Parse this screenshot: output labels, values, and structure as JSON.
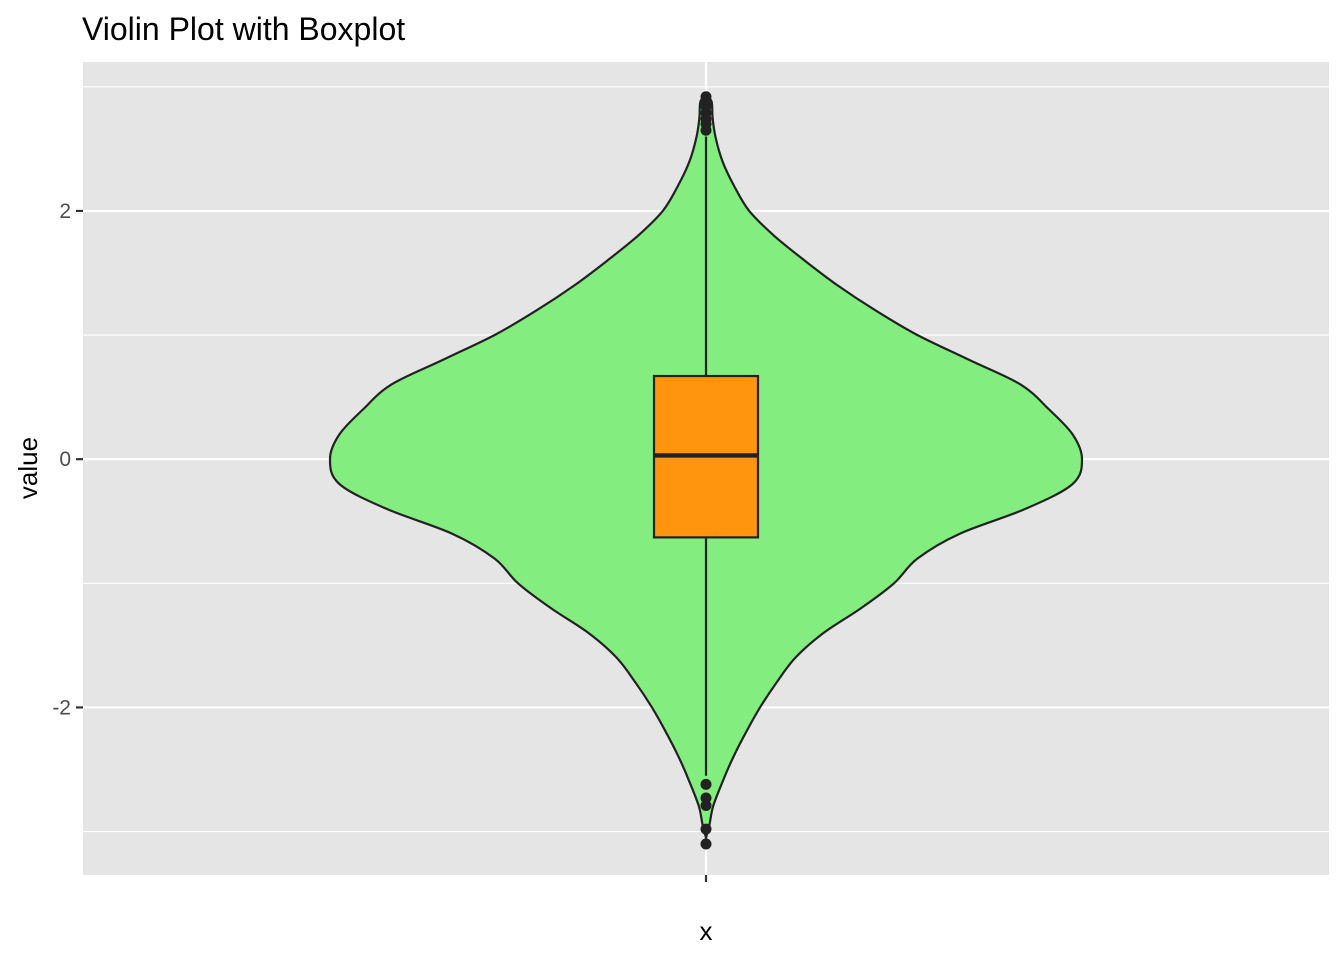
{
  "chart_data": {
    "type": "violin",
    "title": "Violin Plot with Boxplot",
    "xlabel": "x",
    "ylabel": "value",
    "categories": [
      ""
    ],
    "ylim": [
      -3.35,
      3.2
    ],
    "y_ticks": [
      -2,
      0,
      2
    ],
    "y_tick_labels": [
      "-2",
      "0",
      "2"
    ],
    "grid": true,
    "colors": {
      "panel": "#e5e5e5",
      "grid": "#ffffff",
      "violin_fill": "#83ee7f",
      "box_fill": "#ff950e",
      "outline": "#222222",
      "tick_label": "#4d4d4d"
    },
    "violin": {
      "density_profile": [
        {
          "y": 2.93,
          "half_width": 0.0
        },
        {
          "y": 2.88,
          "half_width": 0.012
        },
        {
          "y": 2.75,
          "half_width": 0.014
        },
        {
          "y": 2.6,
          "half_width": 0.02
        },
        {
          "y": 2.4,
          "half_width": 0.035
        },
        {
          "y": 2.2,
          "half_width": 0.06
        },
        {
          "y": 2.0,
          "half_width": 0.092
        },
        {
          "y": 1.8,
          "half_width": 0.145
        },
        {
          "y": 1.6,
          "half_width": 0.21
        },
        {
          "y": 1.4,
          "half_width": 0.28
        },
        {
          "y": 1.2,
          "half_width": 0.36
        },
        {
          "y": 1.0,
          "half_width": 0.45
        },
        {
          "y": 0.8,
          "half_width": 0.56
        },
        {
          "y": 0.6,
          "half_width": 0.67
        },
        {
          "y": 0.4,
          "half_width": 0.73
        },
        {
          "y": 0.2,
          "half_width": 0.78
        },
        {
          "y": 0.0,
          "half_width": 0.8
        },
        {
          "y": -0.2,
          "half_width": 0.78
        },
        {
          "y": -0.4,
          "half_width": 0.68
        },
        {
          "y": -0.6,
          "half_width": 0.54
        },
        {
          "y": -0.8,
          "half_width": 0.45
        },
        {
          "y": -1.0,
          "half_width": 0.4
        },
        {
          "y": -1.2,
          "half_width": 0.33
        },
        {
          "y": -1.4,
          "half_width": 0.25
        },
        {
          "y": -1.6,
          "half_width": 0.19
        },
        {
          "y": -1.8,
          "half_width": 0.15
        },
        {
          "y": -2.0,
          "half_width": 0.115
        },
        {
          "y": -2.2,
          "half_width": 0.085
        },
        {
          "y": -2.4,
          "half_width": 0.058
        },
        {
          "y": -2.6,
          "half_width": 0.035
        },
        {
          "y": -2.8,
          "half_width": 0.015
        },
        {
          "y": -2.95,
          "half_width": 0.007
        },
        {
          "y": -3.05,
          "half_width": 0.0
        }
      ]
    },
    "boxplot": {
      "q1": -0.63,
      "median": 0.03,
      "q3": 0.67,
      "whisker_low": -2.55,
      "whisker_high": 2.6,
      "outliers": [
        2.92,
        2.88,
        2.84,
        2.79,
        2.74,
        2.7,
        2.65,
        -2.62,
        -2.73,
        -2.79,
        -2.98,
        -3.1
      ]
    }
  }
}
